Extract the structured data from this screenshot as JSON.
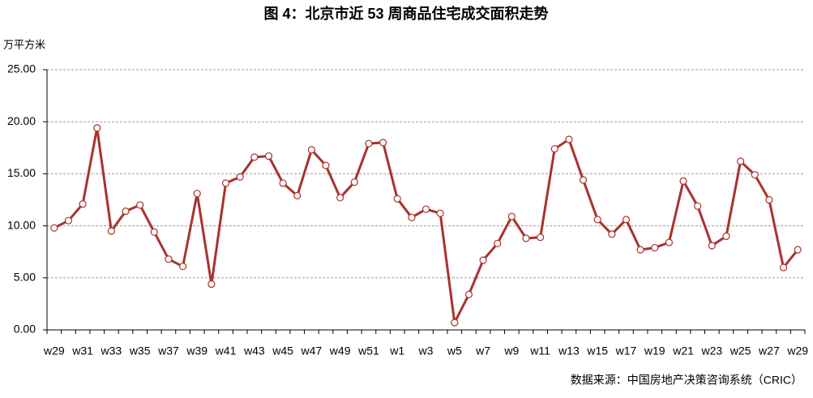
{
  "chart_data": {
    "type": "line",
    "title": "图 4：北京市近 53 周商品住宅成交面积走势",
    "y_label": "万平方米",
    "source": "数据来源：中国房地产决策咨询系统（CRIC）",
    "categories": [
      "w29",
      null,
      "w31",
      null,
      "w33",
      null,
      "w35",
      null,
      "w37",
      null,
      "w39",
      null,
      "w41",
      null,
      "w43",
      null,
      "w45",
      null,
      "w47",
      null,
      "w49",
      null,
      "w51",
      null,
      "w1",
      null,
      "w3",
      null,
      "w5",
      null,
      "w7",
      null,
      "w9",
      null,
      "w11",
      null,
      "w13",
      null,
      "w15",
      null,
      "w17",
      null,
      "w19",
      null,
      "w21",
      null,
      "w23",
      null,
      "w25",
      null,
      "w27",
      null,
      "w29"
    ],
    "series": [
      {
        "name": "成交面积",
        "color": "#a8322d",
        "values": [
          9.8,
          10.5,
          12.1,
          19.4,
          9.5,
          11.4,
          12.0,
          9.4,
          6.8,
          6.1,
          13.1,
          4.4,
          14.1,
          14.7,
          16.6,
          16.7,
          14.1,
          12.9,
          17.3,
          15.8,
          12.7,
          14.2,
          17.9,
          18.0,
          12.6,
          10.8,
          11.6,
          11.2,
          0.7,
          3.4,
          6.7,
          8.3,
          10.9,
          8.8,
          8.9,
          17.4,
          18.3,
          14.4,
          10.6,
          9.2,
          10.6,
          7.7,
          7.9,
          8.4,
          14.3,
          11.9,
          8.1,
          9.0,
          16.2,
          14.9,
          12.5,
          6.0,
          7.7
        ]
      }
    ],
    "ylim": [
      0,
      25
    ],
    "yticks": [
      {
        "value": 0,
        "label": "0.00"
      },
      {
        "value": 5,
        "label": "5.00"
      },
      {
        "value": 10,
        "label": "10.00"
      },
      {
        "value": 15,
        "label": "15.00"
      },
      {
        "value": 20,
        "label": "20.00"
      },
      {
        "value": 25,
        "label": "25.00"
      }
    ],
    "grid": true
  }
}
